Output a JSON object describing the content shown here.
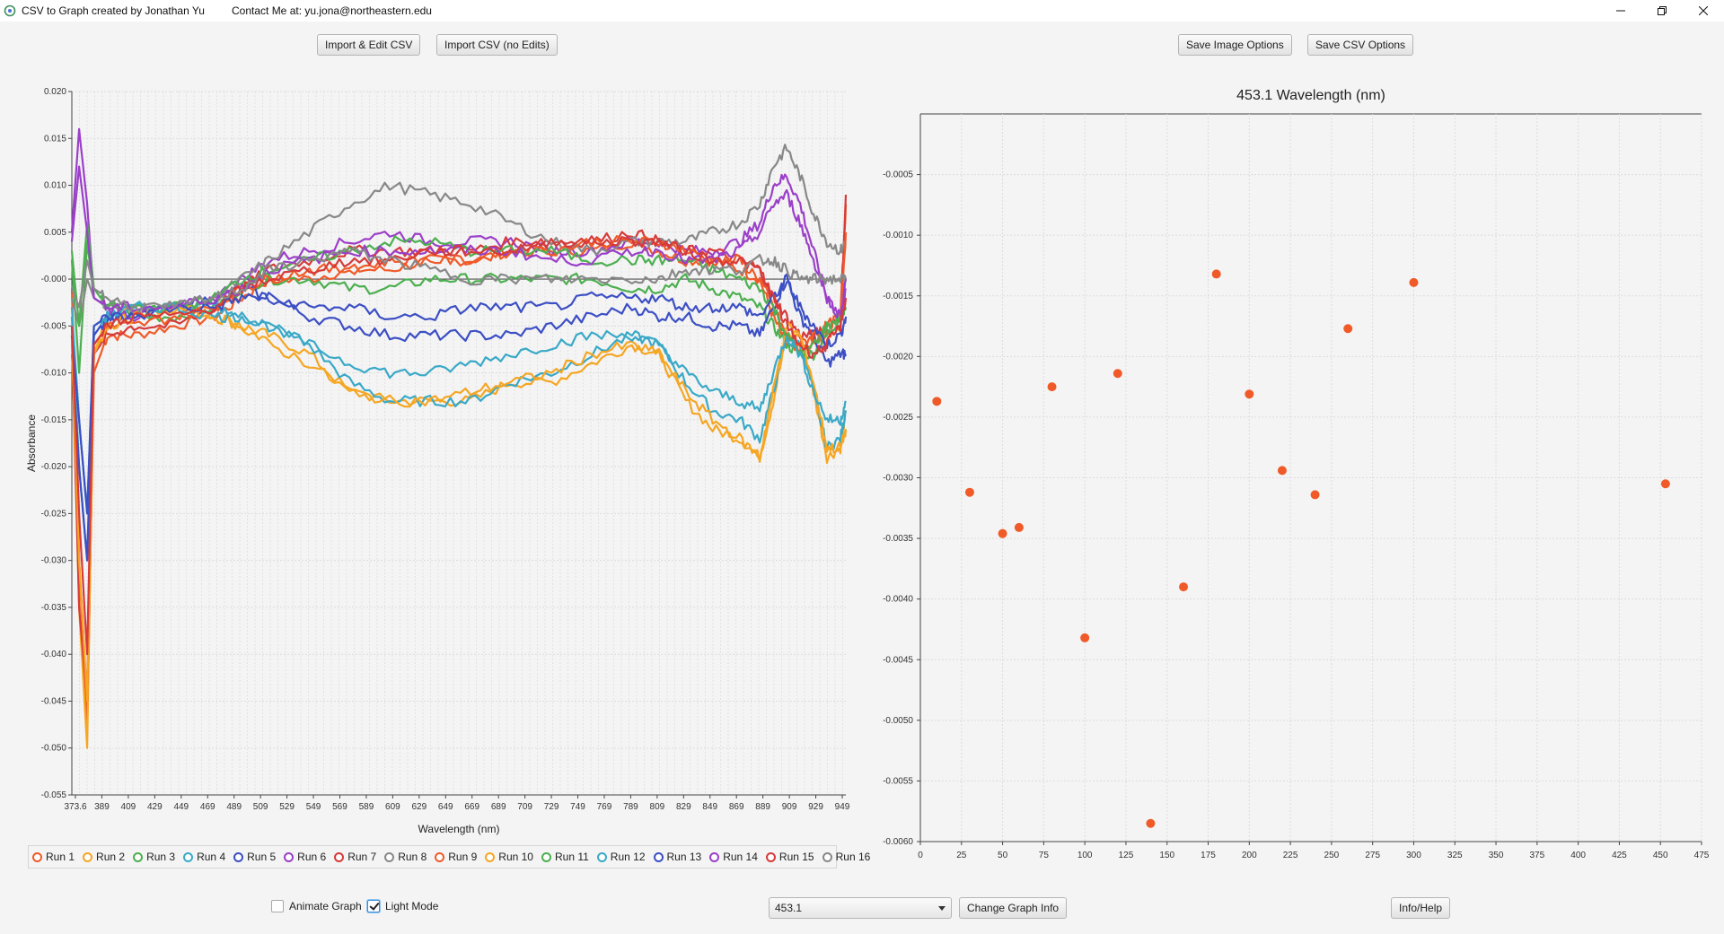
{
  "window": {
    "title": "CSV to Graph created by Jonathan Yu",
    "contact": "Contact Me at: yu.jona@northeastern.edu",
    "controls": [
      "minimize-icon",
      "restore-icon",
      "close-icon"
    ]
  },
  "toolbar": {
    "import_edit": "Import & Edit CSV",
    "import_no_edit": "Import CSV (no Edits)",
    "save_image": "Save Image Options",
    "save_csv": "Save CSV Options"
  },
  "bottom": {
    "animate_label": "Animate Graph",
    "animate_checked": false,
    "light_label": "Light Mode",
    "light_checked": true,
    "selected_wavelength": "453.1",
    "change_info": "Change Graph Info",
    "info_help": "Info/Help"
  },
  "colors": {
    "background": "#f4f4f4",
    "scatter_point": "#f05a28"
  },
  "legend": [
    {
      "name": "Run 1",
      "color": "#f05a28"
    },
    {
      "name": "Run 2",
      "color": "#f5a623"
    },
    {
      "name": "Run 3",
      "color": "#4caf50"
    },
    {
      "name": "Run 4",
      "color": "#3aa9c7"
    },
    {
      "name": "Run 5",
      "color": "#3c4fc4"
    },
    {
      "name": "Run 6",
      "color": "#9b3fc9"
    },
    {
      "name": "Run 7",
      "color": "#d63a3a"
    },
    {
      "name": "Run 8",
      "color": "#888888"
    },
    {
      "name": "Run 9",
      "color": "#f05a28"
    },
    {
      "name": "Run 10",
      "color": "#f5a623"
    },
    {
      "name": "Run 11",
      "color": "#4caf50"
    },
    {
      "name": "Run 12",
      "color": "#3aa9c7"
    },
    {
      "name": "Run 13",
      "color": "#3c4fc4"
    },
    {
      "name": "Run 14",
      "color": "#9b3fc9"
    },
    {
      "name": "Run 15",
      "color": "#d63a3a"
    },
    {
      "name": "Run 16",
      "color": "#888888"
    }
  ],
  "chart_data": [
    {
      "type": "line",
      "title": "",
      "xlabel": "Wavelength (nm)",
      "ylabel": "Absorbance",
      "xlim": [
        373.6,
        949
      ],
      "ylim": [
        -0.055,
        0.02
      ],
      "grid": true,
      "legend": "bottom",
      "x_tick_labels": [
        "373.6",
        "389",
        "409",
        "429",
        "449",
        "469",
        "489",
        "509",
        "529",
        "549",
        "569",
        "589",
        "609",
        "629",
        "649",
        "669",
        "689",
        "709",
        "729",
        "749",
        "769",
        "789",
        "809",
        "829",
        "849",
        "869",
        "889",
        "909",
        "929",
        "949"
      ],
      "y_tick_labels": [
        "0.020",
        "0.015",
        "0.010",
        "0.005",
        "-0.000",
        "-0.005",
        "-0.010",
        "-0.015",
        "-0.020",
        "-0.025",
        "-0.030",
        "-0.035",
        "-0.040",
        "-0.045",
        "-0.050",
        "-0.055"
      ],
      "y_ticks": [
        0.02,
        0.015,
        0.01,
        0.005,
        0,
        -0.005,
        -0.01,
        -0.015,
        -0.02,
        -0.025,
        -0.03,
        -0.035,
        -0.04,
        -0.045,
        -0.05,
        -0.055
      ],
      "x": [
        373.6,
        379,
        385,
        390,
        400,
        420,
        450,
        480,
        500,
        520,
        550,
        580,
        610,
        640,
        670,
        700,
        730,
        760,
        790,
        810,
        830,
        850,
        870,
        885,
        895,
        905,
        915,
        925,
        935,
        945,
        949
      ],
      "series": [
        {
          "name": "Run 1",
          "values": [
            -0.001,
            -0.03,
            -0.048,
            -0.01,
            -0.006,
            -0.006,
            -0.005,
            -0.004,
            -0.002,
            0.0,
            0.0,
            0.001,
            0.001,
            0.002,
            0.002,
            0.003,
            0.003,
            0.003,
            0.004,
            0.003,
            0.002,
            0.002,
            0.001,
            0.0,
            -0.004,
            -0.007,
            -0.008,
            -0.007,
            -0.006,
            -0.005,
            0.008
          ]
        },
        {
          "name": "Run 2",
          "values": [
            -0.005,
            -0.035,
            -0.05,
            -0.008,
            -0.004,
            -0.003,
            -0.003,
            -0.004,
            -0.005,
            -0.006,
            -0.008,
            -0.012,
            -0.013,
            -0.013,
            -0.013,
            -0.011,
            -0.011,
            -0.009,
            -0.007,
            -0.008,
            -0.013,
            -0.016,
            -0.017,
            -0.019,
            -0.013,
            -0.006,
            -0.006,
            -0.012,
            -0.019,
            -0.018,
            -0.014
          ]
        },
        {
          "name": "Run 3",
          "values": [
            0.002,
            -0.01,
            0.004,
            -0.002,
            -0.003,
            -0.004,
            -0.004,
            -0.003,
            -0.001,
            0.0,
            0.0,
            -0.001,
            -0.001,
            0.0,
            0.0,
            0.0,
            0.0,
            0.0,
            -0.001,
            -0.001,
            0.0,
            -0.001,
            -0.002,
            -0.003,
            -0.005,
            -0.007,
            -0.008,
            -0.008,
            -0.006,
            -0.004,
            0.0
          ]
        },
        {
          "name": "Run 4",
          "values": [
            -0.004,
            -0.02,
            -0.03,
            -0.006,
            -0.004,
            -0.003,
            -0.003,
            -0.003,
            -0.004,
            -0.005,
            -0.007,
            -0.011,
            -0.013,
            -0.013,
            -0.013,
            -0.011,
            -0.01,
            -0.008,
            -0.006,
            -0.007,
            -0.011,
            -0.014,
            -0.015,
            -0.017,
            -0.012,
            -0.006,
            -0.007,
            -0.012,
            -0.018,
            -0.017,
            -0.014
          ]
        },
        {
          "name": "Run 5",
          "values": [
            -0.008,
            -0.02,
            -0.03,
            -0.006,
            -0.004,
            -0.004,
            -0.003,
            -0.002,
            -0.001,
            -0.002,
            -0.004,
            -0.005,
            -0.006,
            -0.006,
            -0.006,
            -0.006,
            -0.005,
            -0.004,
            -0.003,
            -0.004,
            -0.004,
            -0.005,
            -0.005,
            -0.006,
            -0.003,
            0.0,
            -0.004,
            -0.006,
            -0.009,
            -0.008,
            -0.008
          ]
        },
        {
          "name": "Run 6",
          "values": [
            0.005,
            0.016,
            0.008,
            -0.002,
            -0.003,
            -0.004,
            -0.003,
            -0.002,
            0.0,
            0.002,
            0.003,
            0.004,
            0.005,
            0.004,
            0.004,
            0.004,
            0.003,
            0.003,
            0.004,
            0.004,
            0.003,
            0.003,
            0.004,
            0.006,
            0.01,
            0.011,
            0.008,
            0.003,
            -0.002,
            -0.004,
            0.0
          ]
        },
        {
          "name": "Run 7",
          "values": [
            -0.006,
            -0.035,
            -0.045,
            -0.008,
            -0.006,
            -0.005,
            -0.005,
            -0.003,
            -0.001,
            0.001,
            0.002,
            0.003,
            0.003,
            0.003,
            0.003,
            0.004,
            0.004,
            0.004,
            0.005,
            0.004,
            0.003,
            0.003,
            0.002,
            0.001,
            -0.002,
            -0.004,
            -0.006,
            -0.006,
            -0.005,
            -0.004,
            0.009
          ]
        },
        {
          "name": "Run 8",
          "values": [
            -0.002,
            -0.005,
            0.0,
            -0.002,
            -0.003,
            -0.003,
            -0.003,
            -0.002,
            0.0,
            0.002,
            0.005,
            0.008,
            0.01,
            0.009,
            0.008,
            0.006,
            0.004,
            0.003,
            0.004,
            0.004,
            0.004,
            0.005,
            0.006,
            0.008,
            0.012,
            0.014,
            0.011,
            0.007,
            0.004,
            0.003,
            0.004
          ]
        },
        {
          "name": "Run 9",
          "values": [
            -0.007,
            -0.03,
            -0.045,
            -0.007,
            -0.005,
            -0.005,
            -0.004,
            -0.003,
            -0.001,
            0.0,
            0.001,
            0.001,
            0.002,
            0.002,
            0.002,
            0.003,
            0.003,
            0.004,
            0.004,
            0.004,
            0.003,
            0.002,
            0.002,
            0.0,
            -0.003,
            -0.006,
            -0.007,
            -0.006,
            -0.005,
            -0.004,
            0.005
          ]
        },
        {
          "name": "Run 10",
          "values": [
            -0.006,
            -0.03,
            -0.045,
            -0.008,
            -0.005,
            -0.004,
            -0.003,
            -0.004,
            -0.005,
            -0.007,
            -0.009,
            -0.012,
            -0.013,
            -0.013,
            -0.012,
            -0.011,
            -0.01,
            -0.008,
            -0.007,
            -0.008,
            -0.012,
            -0.015,
            -0.017,
            -0.019,
            -0.012,
            -0.005,
            -0.006,
            -0.011,
            -0.018,
            -0.018,
            -0.016
          ]
        },
        {
          "name": "Run 11",
          "values": [
            0.003,
            -0.005,
            0.006,
            -0.001,
            -0.003,
            -0.003,
            -0.003,
            -0.002,
            0.0,
            0.001,
            0.002,
            0.003,
            0.004,
            0.004,
            0.003,
            0.003,
            0.003,
            0.002,
            0.002,
            0.002,
            0.002,
            0.001,
            0.0,
            -0.001,
            -0.003,
            -0.006,
            -0.008,
            -0.007,
            -0.005,
            -0.004,
            -0.003
          ]
        },
        {
          "name": "Run 12",
          "values": [
            -0.003,
            -0.015,
            -0.025,
            -0.005,
            -0.004,
            -0.003,
            -0.003,
            -0.004,
            -0.004,
            -0.005,
            -0.007,
            -0.009,
            -0.01,
            -0.01,
            -0.009,
            -0.008,
            -0.007,
            -0.006,
            -0.006,
            -0.007,
            -0.01,
            -0.012,
            -0.013,
            -0.014,
            -0.01,
            -0.006,
            -0.008,
            -0.012,
            -0.015,
            -0.015,
            -0.013
          ]
        },
        {
          "name": "Run 13",
          "values": [
            -0.006,
            -0.015,
            -0.025,
            -0.005,
            -0.004,
            -0.004,
            -0.003,
            -0.003,
            -0.002,
            -0.002,
            -0.003,
            -0.003,
            -0.004,
            -0.004,
            -0.003,
            -0.003,
            -0.003,
            -0.002,
            -0.002,
            -0.002,
            -0.003,
            -0.003,
            -0.003,
            -0.004,
            -0.002,
            0.0,
            -0.003,
            -0.005,
            -0.007,
            -0.006,
            -0.004
          ]
        },
        {
          "name": "Run 14",
          "values": [
            0.004,
            0.012,
            0.005,
            -0.002,
            -0.003,
            -0.003,
            -0.003,
            -0.002,
            -0.001,
            0.001,
            0.002,
            0.003,
            0.003,
            0.003,
            0.003,
            0.003,
            0.002,
            0.002,
            0.003,
            0.003,
            0.002,
            0.002,
            0.003,
            0.005,
            0.008,
            0.009,
            0.006,
            0.002,
            -0.002,
            -0.004,
            -0.001
          ]
        },
        {
          "name": "Run 15",
          "values": [
            -0.005,
            -0.025,
            -0.04,
            -0.007,
            -0.005,
            -0.004,
            -0.004,
            -0.003,
            -0.001,
            0.0,
            0.001,
            0.002,
            0.002,
            0.003,
            0.003,
            0.003,
            0.004,
            0.004,
            0.004,
            0.004,
            0.003,
            0.002,
            0.002,
            0.001,
            -0.002,
            -0.005,
            -0.007,
            -0.008,
            -0.007,
            -0.005,
            -0.002
          ]
        },
        {
          "name": "Run 16",
          "values": [
            -0.001,
            -0.003,
            0.002,
            -0.001,
            -0.002,
            -0.003,
            -0.003,
            -0.002,
            -0.001,
            0.001,
            0.002,
            0.003,
            0.002,
            0.001,
            0.0,
            0.0,
            0.0,
            0.0,
            0.0,
            0.0,
            0.001,
            0.001,
            0.001,
            0.002,
            0.002,
            0.001,
            0.0,
            0.0,
            0.0,
            0.0,
            0.0
          ]
        }
      ]
    },
    {
      "type": "scatter",
      "title": "453.1 Wavelength (nm)",
      "xlabel": "",
      "ylabel": "",
      "xlim": [
        0,
        475
      ],
      "ylim": [
        -0.006,
        0.0
      ],
      "grid": true,
      "x_tick_labels": [
        "0",
        "25",
        "50",
        "75",
        "100",
        "125",
        "150",
        "175",
        "200",
        "225",
        "250",
        "275",
        "300",
        "325",
        "350",
        "375",
        "400",
        "425",
        "450",
        "475"
      ],
      "x_ticks": [
        0,
        25,
        50,
        75,
        100,
        125,
        150,
        175,
        200,
        225,
        250,
        275,
        300,
        325,
        350,
        375,
        400,
        425,
        450,
        475
      ],
      "y_tick_labels": [
        "-0.0005",
        "-0.0010",
        "-0.0015",
        "-0.0020",
        "-0.0025",
        "-0.0030",
        "-0.0035",
        "-0.0040",
        "-0.0045",
        "-0.0050",
        "-0.0055",
        "-0.0060"
      ],
      "y_ticks": [
        -0.0005,
        -0.001,
        -0.0015,
        -0.002,
        -0.0025,
        -0.003,
        -0.0035,
        -0.004,
        -0.0045,
        -0.005,
        -0.0055,
        -0.006
      ],
      "points": [
        {
          "x": 10,
          "y": -0.00237
        },
        {
          "x": 30,
          "y": -0.00312
        },
        {
          "x": 50,
          "y": -0.00346
        },
        {
          "x": 60,
          "y": -0.00341
        },
        {
          "x": 80,
          "y": -0.00225
        },
        {
          "x": 100,
          "y": -0.00432
        },
        {
          "x": 120,
          "y": -0.00214
        },
        {
          "x": 140,
          "y": -0.00585
        },
        {
          "x": 160,
          "y": -0.0039
        },
        {
          "x": 180,
          "y": -0.00132
        },
        {
          "x": 200,
          "y": -0.00231
        },
        {
          "x": 220,
          "y": -0.00294
        },
        {
          "x": 240,
          "y": -0.00314
        },
        {
          "x": 260,
          "y": -0.00177
        },
        {
          "x": 300,
          "y": -0.00139
        },
        {
          "x": 453.1,
          "y": -0.00305
        }
      ]
    }
  ]
}
